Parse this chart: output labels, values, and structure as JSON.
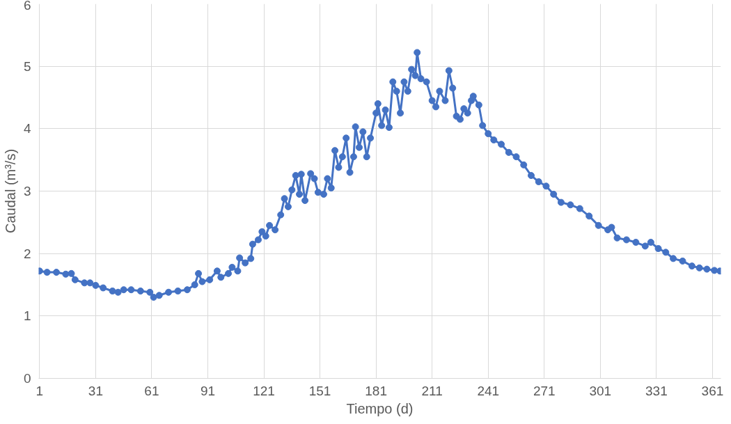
{
  "chart_data": {
    "type": "line",
    "xlabel": "Tiempo (d)",
    "ylabel": "Caudal (m³/s)",
    "x": [
      1,
      5,
      10,
      15,
      18,
      20,
      25,
      28,
      31,
      35,
      40,
      43,
      46,
      50,
      55,
      60,
      62,
      65,
      70,
      75,
      80,
      84,
      86,
      88,
      92,
      96,
      98,
      102,
      104,
      107,
      108,
      111,
      114,
      115,
      118,
      120,
      122,
      124,
      127,
      130,
      132,
      134,
      136,
      138,
      140,
      141,
      143,
      146,
      148,
      150,
      153,
      155,
      157,
      159,
      161,
      163,
      165,
      167,
      169,
      170,
      172,
      174,
      176,
      178,
      181,
      182,
      184,
      186,
      188,
      190,
      192,
      194,
      196,
      198,
      200,
      202,
      203,
      205,
      208,
      211,
      213,
      215,
      218,
      220,
      222,
      224,
      226,
      228,
      230,
      232,
      233,
      236,
      238,
      241,
      244,
      248,
      252,
      256,
      260,
      264,
      268,
      272,
      276,
      280,
      285,
      290,
      295,
      300,
      305,
      307,
      310,
      315,
      320,
      325,
      328,
      332,
      336,
      340,
      345,
      350,
      354,
      358,
      362,
      365
    ],
    "series": [
      {
        "color": "#4472c4",
        "values": [
          1.72,
          1.7,
          1.7,
          1.67,
          1.68,
          1.58,
          1.53,
          1.53,
          1.49,
          1.45,
          1.4,
          1.38,
          1.42,
          1.42,
          1.4,
          1.38,
          1.3,
          1.33,
          1.38,
          1.4,
          1.42,
          1.5,
          1.68,
          1.55,
          1.58,
          1.72,
          1.62,
          1.68,
          1.78,
          1.72,
          1.93,
          1.85,
          1.92,
          2.15,
          2.22,
          2.35,
          2.28,
          2.45,
          2.38,
          2.62,
          2.88,
          2.75,
          3.02,
          3.25,
          2.95,
          3.27,
          2.85,
          3.28,
          3.2,
          2.98,
          2.95,
          3.2,
          3.05,
          3.65,
          3.38,
          3.55,
          3.85,
          3.3,
          3.55,
          4.03,
          3.7,
          3.95,
          3.55,
          3.85,
          4.25,
          4.4,
          4.05,
          4.3,
          4.02,
          4.75,
          4.6,
          4.25,
          4.75,
          4.6,
          4.95,
          4.85,
          5.22,
          4.8,
          4.75,
          4.45,
          4.35,
          4.6,
          4.45,
          4.93,
          4.65,
          4.2,
          4.15,
          4.32,
          4.25,
          4.45,
          4.52,
          4.38,
          4.05,
          3.92,
          3.82,
          3.75,
          3.62,
          3.55,
          3.42,
          3.25,
          3.15,
          3.08,
          2.95,
          2.82,
          2.78,
          2.72,
          2.6,
          2.45,
          2.38,
          2.42,
          2.25,
          2.22,
          2.18,
          2.12,
          2.18,
          2.08,
          2.02,
          1.92,
          1.88,
          1.8,
          1.77,
          1.75,
          1.73,
          1.72
        ]
      }
    ],
    "xlim": [
      0.5,
      365.5
    ],
    "xticks": [
      1,
      31,
      61,
      91,
      121,
      151,
      181,
      211,
      241,
      271,
      301,
      331,
      361
    ],
    "ylim": [
      0,
      6
    ],
    "yticks": [
      0,
      1,
      2,
      3,
      4,
      5,
      6
    ],
    "grid": true,
    "marker": "circle",
    "line_style": "solid"
  }
}
